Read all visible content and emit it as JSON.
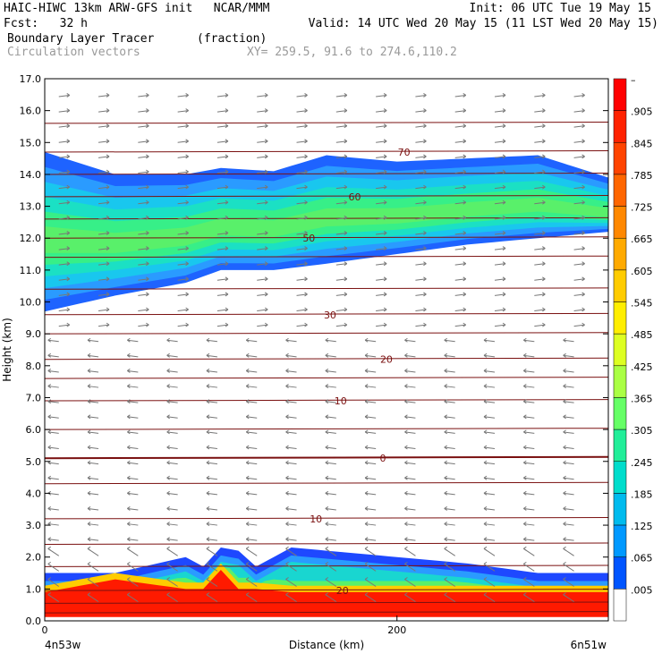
{
  "header": {
    "line1_left": "HAIC-HIWC 13km ARW-GFS init   NCAR/MMM",
    "line1_right": "Init: 06 UTC Tue 19 May 15",
    "fcst": "Fcst:   32 h",
    "valid": "Valid: 14 UTC Wed 20 May 15 (11 LST Wed 20 May 15)",
    "field": "Boundary Layer Tracer",
    "units": "(fraction)",
    "vectors": "Circulation vectors",
    "xy": "XY= 259.5, 91.6 to 274.6,110.2"
  },
  "chart_data": {
    "type": "heatmap",
    "xlabel": "Distance (km)",
    "ylabel": "Height (km)",
    "xlim": [
      0,
      320
    ],
    "ylim": [
      0,
      17
    ],
    "x_ticks": [
      {
        "value": 0,
        "label": "0"
      },
      {
        "value": 200,
        "label": "200"
      }
    ],
    "y_ticks": [
      "0.0",
      "1.0",
      "2.0",
      "3.0",
      "4.0",
      "5.0",
      "6.0",
      "7.0",
      "8.0",
      "9.0",
      "10.0",
      "11.0",
      "12.0",
      "13.0",
      "14.0",
      "15.0",
      "16.0",
      "17.0"
    ],
    "endpoint_labels": {
      "left": "4n53w",
      "right": "6n51w"
    },
    "colorbar": {
      "labels": [
        "–",
        ".905",
        ".845",
        ".785",
        ".725",
        ".665",
        ".605",
        ".545",
        ".485",
        ".425",
        ".365",
        ".305",
        ".245",
        ".185",
        ".125",
        ".065",
        ".005"
      ],
      "colors": [
        "#ff0000",
        "#ff2200",
        "#ff4400",
        "#ff6600",
        "#ff8800",
        "#ffaa00",
        "#ffcc00",
        "#ffee00",
        "#ddff22",
        "#aaff44",
        "#66ff66",
        "#22ee99",
        "#00ddcc",
        "#00bbee",
        "#0099ff",
        "#0055ff",
        "#ffffff"
      ]
    },
    "temperature_contours": [
      {
        "label": "70",
        "y": 14.7
      },
      {
        "label": "60",
        "y": 13.3
      },
      {
        "label": "50",
        "y": 12.0
      },
      {
        "label": "30",
        "y": 9.6
      },
      {
        "label": "20",
        "y": 8.2
      },
      {
        "label": "10",
        "y": 6.9
      },
      {
        "label": "0",
        "y": 5.1
      },
      {
        "label": "10",
        "y": 3.2
      },
      {
        "label": "20",
        "y": 0.95
      }
    ],
    "upper_tracer_layer": {
      "x": [
        0,
        40,
        80,
        100,
        130,
        160,
        200,
        240,
        280,
        320
      ],
      "top": [
        14.7,
        14.0,
        14.0,
        14.2,
        14.1,
        14.6,
        14.4,
        14.5,
        14.6,
        13.9
      ],
      "bottom": [
        9.7,
        10.2,
        10.6,
        11.0,
        11.0,
        11.2,
        11.5,
        11.8,
        12.0,
        12.2
      ],
      "peak_fraction": 0.4
    },
    "lower_tracer_layer": {
      "x": [
        0,
        40,
        80,
        90,
        100,
        110,
        120,
        140,
        160,
        200,
        240,
        280,
        320
      ],
      "top": [
        1.5,
        1.5,
        2.0,
        1.7,
        2.3,
        2.2,
        1.7,
        2.3,
        2.2,
        2.0,
        1.8,
        1.5,
        1.5
      ],
      "red_top": [
        0.9,
        1.3,
        1.0,
        1.0,
        1.6,
        1.0,
        1.0,
        0.9,
        0.9,
        0.9,
        0.9,
        0.9,
        0.9
      ]
    }
  }
}
